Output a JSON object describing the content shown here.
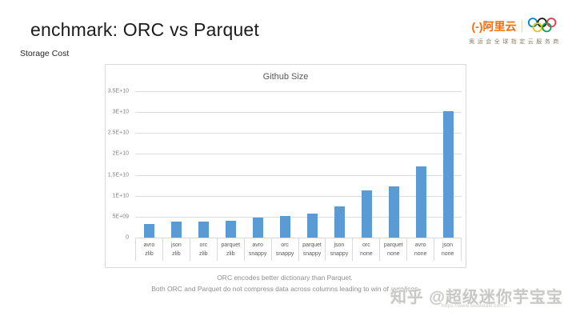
{
  "slide": {
    "title": "enchmark: ORC vs Parquet",
    "subtitle": "Storage Cost"
  },
  "logo": {
    "bracket": "(-)",
    "brand": "阿里云",
    "tagline": "奥运会全球指定云服务商",
    "brand_color": "#FF6A00",
    "ring_colors": [
      "#0081C8",
      "#1A1A1A",
      "#EE334E",
      "#F4C300",
      "#00A651"
    ]
  },
  "chart_data": {
    "type": "bar",
    "title": "Github Size",
    "xlabel": "",
    "ylabel": "",
    "ylim": [
      0,
      35000000000
    ],
    "grid": true,
    "legend": "none",
    "bar_color": "#5B9BD5",
    "yticks": [
      "3.5E+10",
      "3E+10",
      "2.5E+10",
      "2E+10",
      "1.5E+10",
      "1E+10",
      "5E+09",
      "0"
    ],
    "categories": [
      {
        "format": "avro",
        "codec": "zlib"
      },
      {
        "format": "json",
        "codec": "zlib"
      },
      {
        "format": "orc",
        "codec": "zlib"
      },
      {
        "format": "parquet",
        "codec": "zlib"
      },
      {
        "format": "avro",
        "codec": "snappy"
      },
      {
        "format": "orc",
        "codec": "snappy"
      },
      {
        "format": "parquet",
        "codec": "snappy"
      },
      {
        "format": "json",
        "codec": "snappy"
      },
      {
        "format": "orc",
        "codec": "none"
      },
      {
        "format": "parquet",
        "codec": "none"
      },
      {
        "format": "avro",
        "codec": "none"
      },
      {
        "format": "json",
        "codec": "none"
      }
    ],
    "values": [
      3300000000,
      3800000000,
      3800000000,
      4100000000,
      4700000000,
      5100000000,
      5700000000,
      7500000000,
      11300000000,
      12200000000,
      17000000000,
      30200000000
    ]
  },
  "captions": {
    "line1": "ORC encodes better dictionary than Parquet.",
    "line2": "Both ORC and Parquet do not compress data across columns leading to win of avro/json"
  },
  "watermark": {
    "text": "知乎 @超级迷你芋宝宝",
    "fine_print": "https://www.slidestalk.com/…"
  }
}
